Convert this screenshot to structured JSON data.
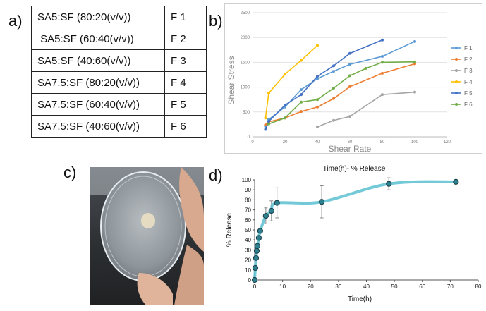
{
  "panels": {
    "a": "a)",
    "b": "b)",
    "c": "c)",
    "d": "d)"
  },
  "table": {
    "rows": [
      {
        "composition": "SA5:SF (80:20(v/v))",
        "code": "F 1"
      },
      {
        "composition": " SA5:SF (60:40(v/v))",
        "code": "F 2"
      },
      {
        "composition": "SA5:SF (40:60(v/v))",
        "code": "F 3"
      },
      {
        "composition": "SA7.5:SF (80:20(v/v))",
        "code": "F 4"
      },
      {
        "composition": "SA7.5:SF (60:40(v/v))",
        "code": "F 5"
      },
      {
        "composition": "SA7.5:SF (40:60(v/v))",
        "code": "F 6"
      }
    ]
  },
  "chart_data": [
    {
      "type": "line",
      "title": "",
      "xlabel": "Shear Rate",
      "ylabel": "Shear Stress",
      "xlim": [
        0,
        120
      ],
      "ylim": [
        0,
        2500
      ],
      "xticks": [
        0,
        20,
        40,
        60,
        80,
        100,
        120
      ],
      "yticks": [
        0,
        500,
        1000,
        1500,
        2000,
        2500
      ],
      "grid": true,
      "legend": "right",
      "series": [
        {
          "name": "F 1",
          "color": "#5b9bd5",
          "x": [
            8,
            10,
            20,
            30,
            40,
            50,
            60,
            80,
            100
          ],
          "y": [
            210,
            350,
            600,
            950,
            1170,
            1320,
            1460,
            1620,
            1920
          ]
        },
        {
          "name": "F 2",
          "color": "#ed7d31",
          "x": [
            8,
            10,
            20,
            30,
            40,
            50,
            60,
            80,
            100
          ],
          "y": [
            240,
            300,
            380,
            510,
            600,
            770,
            1010,
            1280,
            1470
          ]
        },
        {
          "name": "F 3",
          "color": "#a5a5a5",
          "x": [
            40,
            50,
            60,
            80,
            100
          ],
          "y": [
            200,
            330,
            410,
            850,
            900
          ]
        },
        {
          "name": "F 4",
          "color": "#ffc000",
          "x": [
            8,
            10,
            20,
            30,
            40
          ],
          "y": [
            380,
            880,
            1260,
            1540,
            1840
          ]
        },
        {
          "name": "F 5",
          "color": "#4472c4",
          "x": [
            8,
            10,
            20,
            30,
            40,
            50,
            60,
            80
          ],
          "y": [
            150,
            310,
            640,
            850,
            1220,
            1430,
            1680,
            1950
          ]
        },
        {
          "name": "F 6",
          "color": "#70ad47",
          "x": [
            10,
            20,
            30,
            40,
            50,
            60,
            70,
            80,
            100
          ],
          "y": [
            260,
            380,
            700,
            750,
            980,
            1230,
            1380,
            1500,
            1510
          ]
        }
      ]
    },
    {
      "type": "line",
      "title": "Time(h)- % Release",
      "xlabel": "Time(h)",
      "ylabel": "% Release",
      "xlim": [
        0,
        80
      ],
      "ylim": [
        0,
        100
      ],
      "xticks": [
        0,
        10,
        20,
        30,
        40,
        50,
        60,
        70,
        80
      ],
      "yticks": [
        0,
        10,
        20,
        30,
        40,
        50,
        60,
        70,
        80,
        90,
        100
      ],
      "grid": false,
      "legend": "none",
      "series": [
        {
          "line_color": "#5bbfd0",
          "marker_color": "#2e7f8f",
          "x": [
            0,
            0.25,
            0.5,
            0.75,
            1,
            1.5,
            2,
            4,
            6,
            8,
            24,
            48,
            72
          ],
          "y": [
            0,
            12,
            22,
            29,
            34,
            42,
            49,
            64,
            69,
            77,
            78,
            96,
            98
          ],
          "error": [
            0,
            0,
            0,
            0,
            0,
            0,
            0,
            8,
            10,
            15,
            16,
            6,
            0
          ]
        }
      ]
    }
  ],
  "photo": {
    "description_icon": "petri-dish-photo"
  }
}
